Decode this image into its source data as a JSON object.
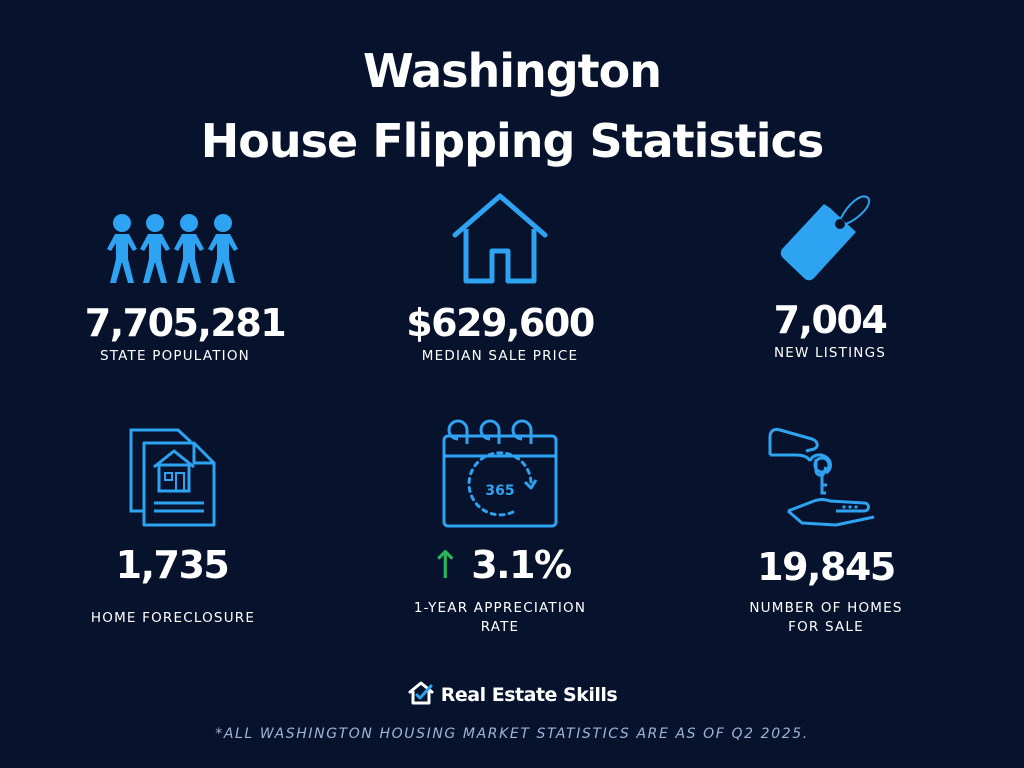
{
  "title": {
    "line1": "Washington",
    "line2": "House Flipping Statistics"
  },
  "colors": {
    "background": "#07132c",
    "icon_blue": "#2ea3f2",
    "arrow_green": "#2bb55a"
  },
  "stats": [
    {
      "icon": "people-icon",
      "value": "7,705,281",
      "label": "STATE POPULATION"
    },
    {
      "icon": "house-icon",
      "value": "$629,600",
      "label": "MEDIAN SALE PRICE"
    },
    {
      "icon": "price-tag-icon",
      "value": "7,004",
      "label": "NEW LISTINGS"
    },
    {
      "icon": "foreclosure-document-icon",
      "value": "1,735",
      "label": "HOME FORECLOSURE"
    },
    {
      "icon": "calendar-365-icon",
      "value": "3.1%",
      "arrow": "↑",
      "label_lines": [
        "1-YEAR APPRECIATION",
        "RATE"
      ],
      "calendar_text": "365"
    },
    {
      "icon": "key-handover-icon",
      "value": "19,845",
      "label_lines": [
        "NUMBER OF HOMES",
        "FOR SALE"
      ]
    }
  ],
  "brand": {
    "name": "Real Estate Skills",
    "icon": "house-check-logo-icon"
  },
  "footnote": "*ALL WASHINGTON HOUSING MARKET STATISTICS ARE AS OF Q2 2025."
}
